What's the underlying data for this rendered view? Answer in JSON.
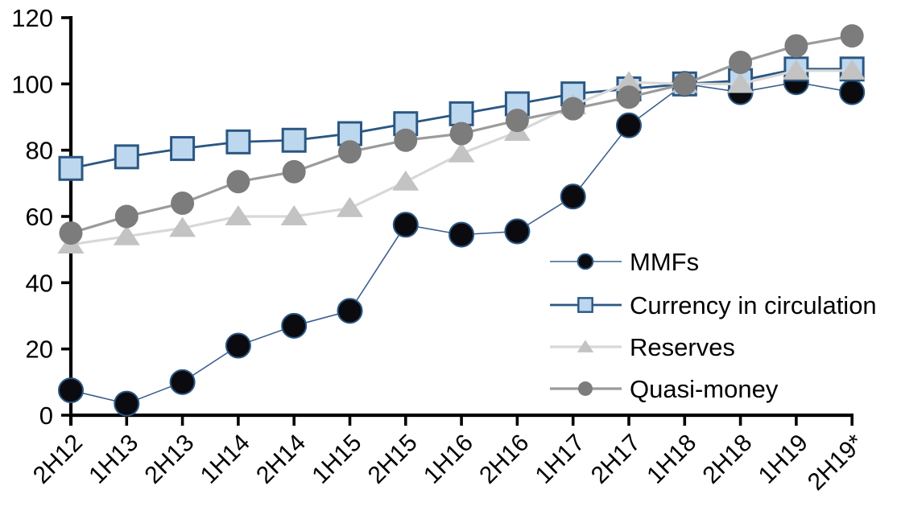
{
  "figure": {
    "background": "#FFFFFF",
    "axis_color": "#000000",
    "text_color": "#000000"
  },
  "chart_data": {
    "type": "line",
    "categories": [
      "2H12",
      "1H13",
      "2H13",
      "1H14",
      "2H14",
      "1H15",
      "2H15",
      "1H16",
      "2H16",
      "1H17",
      "2H17",
      "1H18",
      "2H18",
      "1H19",
      "2H19*"
    ],
    "series": [
      {
        "name": "MMFs",
        "marker": "circle",
        "marker_color": "#0A0A0F",
        "marker_outline": "#2A5783",
        "marker_outline_width": 2,
        "line_color": "#3D6190",
        "line_width": 1.6,
        "marker_size": 30,
        "values": [
          7.5,
          3.5,
          10,
          21,
          27,
          31.5,
          57.5,
          54.5,
          55.5,
          66,
          87.5,
          100,
          97.5,
          100.5,
          97.5
        ]
      },
      {
        "name": "Currency in circulation",
        "marker": "square",
        "marker_color": "#BDD7EE",
        "marker_outline": "#2A5783",
        "marker_outline_width": 3,
        "line_color": "#2A5783",
        "line_width": 2.8,
        "marker_size": 28,
        "values": [
          74.5,
          78,
          80.5,
          82.5,
          83,
          85,
          88,
          91,
          94,
          97,
          98.5,
          100,
          101,
          104.5,
          104.5
        ]
      },
      {
        "name": "Reserves",
        "marker": "triangle",
        "marker_color": "#C3C3C3",
        "marker_outline": "#C3C3C3",
        "marker_outline_width": 0,
        "line_color": "#D8D8D8",
        "line_width": 3.2,
        "marker_size": 29,
        "values": [
          51.5,
          54,
          56.5,
          60,
          60,
          62.5,
          70.5,
          79,
          85.5,
          93.5,
          100.5,
          100,
          100,
          104,
          104
        ]
      },
      {
        "name": "Quasi-money",
        "marker": "circle",
        "marker_color": "#7C7C7C",
        "marker_outline": "#7C7C7C",
        "marker_outline_width": 0,
        "line_color": "#9B9B9B",
        "line_width": 3.2,
        "marker_size": 29,
        "values": [
          55,
          60,
          64,
          70.5,
          73.5,
          79.5,
          83,
          85,
          89,
          92.5,
          96,
          100,
          106.5,
          111.5,
          114.5
        ]
      }
    ],
    "ylim": [
      0,
      120
    ],
    "yticks": [
      0,
      20,
      40,
      60,
      80,
      100,
      120
    ],
    "grid": false,
    "legend_position": "inside-right"
  }
}
